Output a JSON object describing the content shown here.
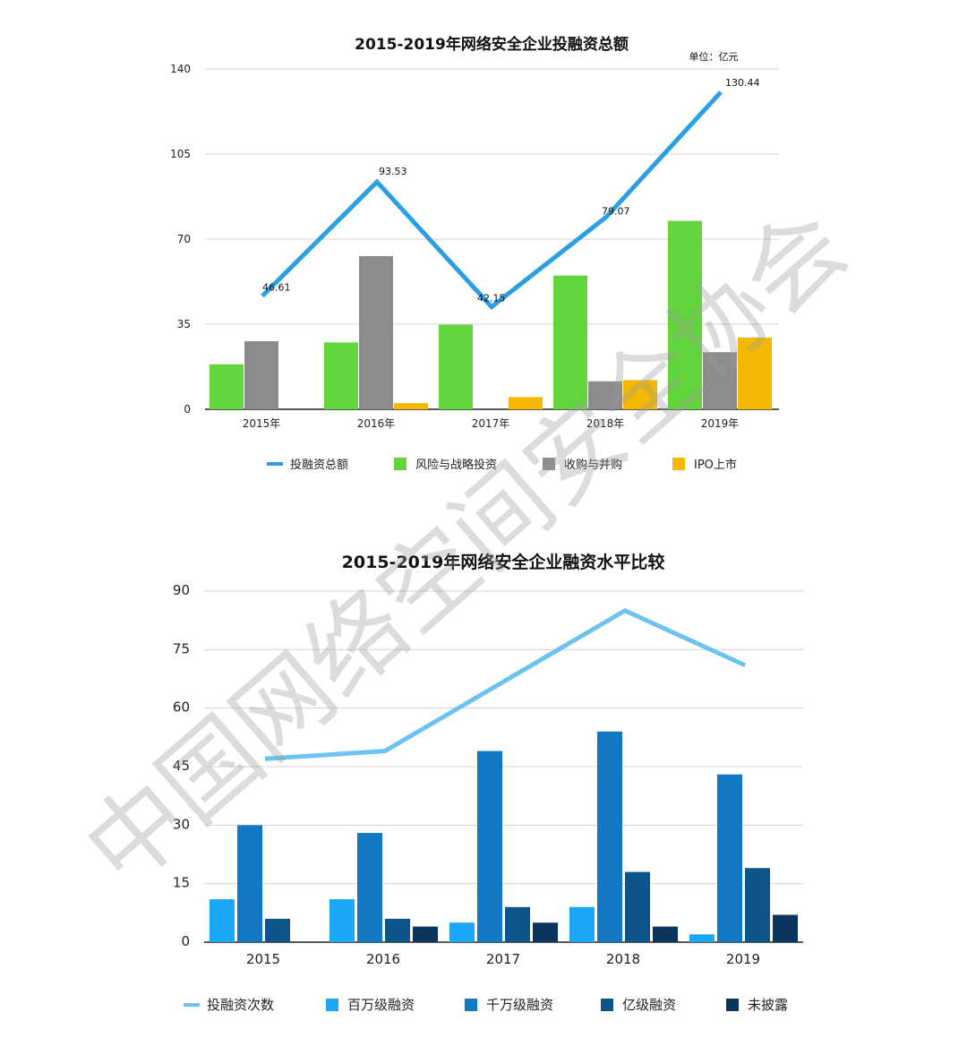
{
  "chart_data": [
    {
      "type": "bar",
      "title": "2015-2019年网络安全企业投融资总额",
      "unit_label": "单位：亿元",
      "categories": [
        "2015年",
        "2016年",
        "2017年",
        "2018年",
        "2019年"
      ],
      "ylim": [
        0,
        140
      ],
      "yticks": [
        "0",
        "35",
        "70",
        "105",
        "140"
      ],
      "grid": true,
      "legend_position": "bottom",
      "line_series": {
        "name": "投融资总额",
        "values": [
          46.61,
          93.53,
          42.15,
          79.07,
          130.44
        ],
        "labels": [
          "46.61",
          "93.53",
          "42.15",
          "79.07",
          "130.44"
        ],
        "color": "#2b9fe6"
      },
      "series": [
        {
          "name": "风险与战略投资",
          "values": [
            18.5,
            27.5,
            34.8,
            55.0,
            77.5
          ],
          "color": "#63d53c"
        },
        {
          "name": "收购与并购",
          "values": [
            28.0,
            63.0,
            0,
            11.5,
            23.5
          ],
          "color": "#8c8c8c"
        },
        {
          "name": "IPO上市",
          "values": [
            0,
            2.5,
            5.0,
            12.0,
            29.5
          ],
          "color": "#f5b800"
        }
      ]
    },
    {
      "type": "bar",
      "title": "2015-2019年网络安全企业融资水平比较",
      "categories": [
        "2015",
        "2016",
        "2017",
        "2018",
        "2019"
      ],
      "ylim": [
        0,
        90
      ],
      "yticks": [
        "0",
        "15",
        "30",
        "45",
        "60",
        "75",
        "90"
      ],
      "grid": true,
      "legend_position": "bottom",
      "line_series": {
        "name": "投融资次数",
        "values": [
          47,
          49,
          67,
          85,
          71
        ],
        "color": "#6cc3f1"
      },
      "series": [
        {
          "name": "百万级融资",
          "values": [
            11,
            11,
            5,
            9,
            2
          ],
          "color": "#1aa7f5"
        },
        {
          "name": "千万级融资",
          "values": [
            30,
            28,
            49,
            54,
            43
          ],
          "color": "#1378c3"
        },
        {
          "name": "亿级融资",
          "values": [
            6,
            6,
            9,
            18,
            19
          ],
          "color": "#0d5488"
        },
        {
          "name": "未披露",
          "values": [
            0,
            4,
            5,
            4,
            7
          ],
          "color": "#0b355e"
        }
      ]
    }
  ],
  "watermark": "中国网络空间安全协会"
}
